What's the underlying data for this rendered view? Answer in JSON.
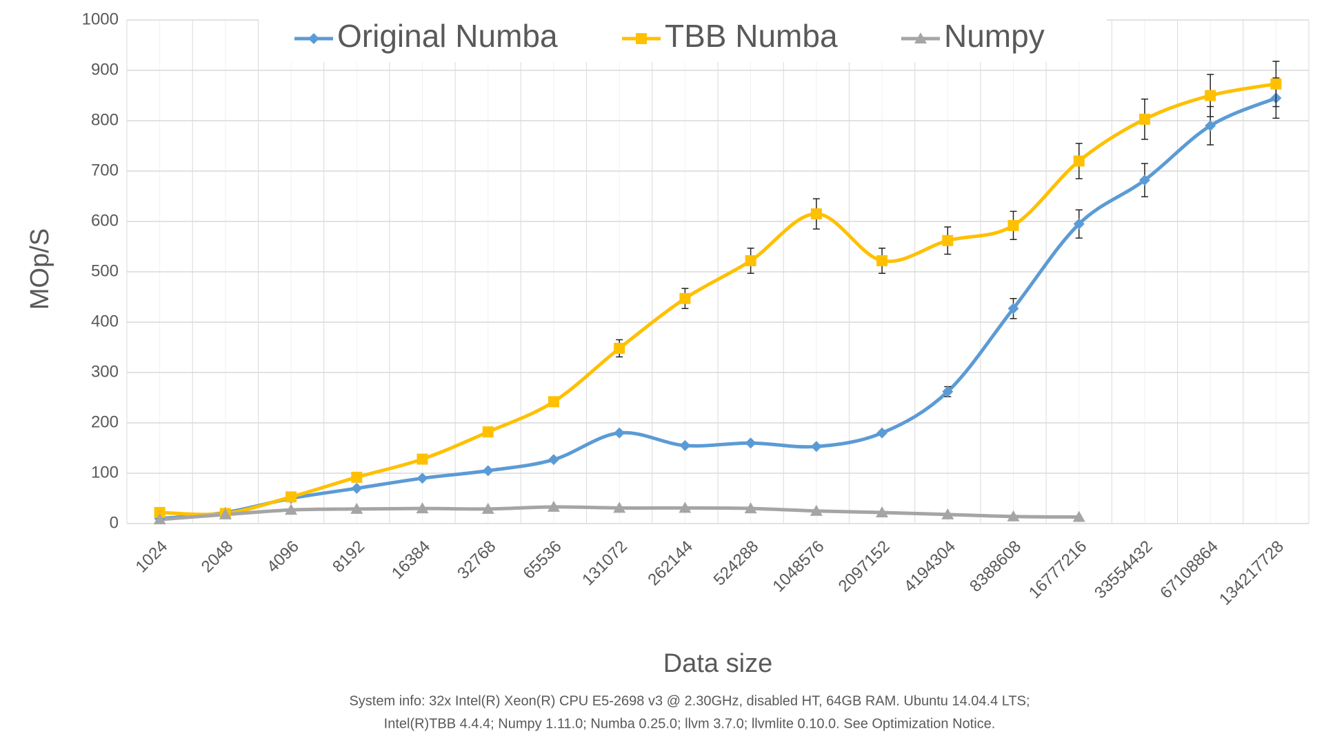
{
  "chart_data": {
    "type": "line",
    "categories": [
      "1024",
      "2048",
      "4096",
      "8192",
      "16384",
      "32768",
      "65536",
      "131072",
      "262144",
      "524288",
      "1048576",
      "2097152",
      "4194304",
      "8388608",
      "16777216",
      "33554432",
      "67108864",
      "134217728"
    ],
    "series": [
      {
        "name": "Original Numba",
        "color": "#5b9bd5",
        "marker": "diamond",
        "values": [
          10,
          22,
          50,
          70,
          90,
          105,
          127,
          180,
          155,
          160,
          153,
          180,
          262,
          427,
          595,
          682,
          790,
          845
        ],
        "errors": [
          null,
          null,
          null,
          null,
          null,
          null,
          null,
          null,
          null,
          null,
          null,
          null,
          10,
          20,
          28,
          33,
          38,
          40
        ]
      },
      {
        "name": "TBB Numba",
        "color": "#ffc000",
        "marker": "square",
        "values": [
          22,
          20,
          53,
          92,
          128,
          182,
          242,
          348,
          447,
          522,
          615,
          522,
          562,
          592,
          720,
          803,
          850,
          873
        ],
        "errors": [
          null,
          null,
          null,
          null,
          null,
          null,
          null,
          17,
          20,
          25,
          30,
          25,
          27,
          28,
          35,
          40,
          42,
          45
        ]
      },
      {
        "name": "Numpy",
        "color": "#a5a5a5",
        "marker": "triangle",
        "values": [
          8,
          18,
          27,
          29,
          30,
          29,
          33,
          31,
          31,
          30,
          25,
          22,
          18,
          14,
          13,
          null,
          null,
          null
        ]
      }
    ],
    "ylim": [
      0,
      1000
    ],
    "yticks": [
      0,
      100,
      200,
      300,
      400,
      500,
      600,
      700,
      800,
      900,
      1000
    ],
    "grid": true,
    "legend": "top",
    "ylabel": "MOp/S",
    "xlabel": "Data size",
    "footnote": [
      "System info: 32x Intel(R) Xeon(R) CPU E5-2698 v3 @ 2.30GHz, disabled HT, 64GB RAM. Ubuntu 14.04.4 LTS;",
      "Intel(R)TBB 4.4.4; Numpy 1.11.0; Numba 0.25.0; llvm 3.7.0; llvmlite 0.10.0. See Optimization Notice."
    ]
  }
}
